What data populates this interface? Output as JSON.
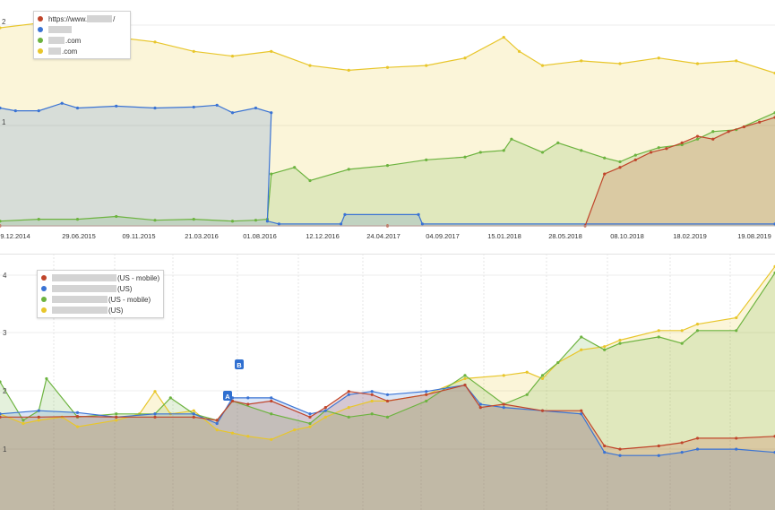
{
  "chart_data": [
    {
      "type": "area",
      "title": "",
      "x_tick_labels": [
        "9.12.2014",
        "29.06.2015",
        "09.11.2015",
        "21.03.2016",
        "01.08.2016",
        "12.12.2016",
        "24.04.2017",
        "04.09.2017",
        "15.01.2018",
        "28.05.2018",
        "08.10.2018",
        "18.02.2019",
        "19.08.2019"
      ],
      "y_tick_labels": [
        "2",
        "1"
      ],
      "ylim": [
        0,
        2.3
      ],
      "legend_position": "top-left",
      "series": [
        {
          "name": "https://www.",
          "name_suffix": "/",
          "color": "#c0452b",
          "x": [
            0,
            0.5,
            0.755,
            0.78,
            0.8,
            0.82,
            0.84,
            0.86,
            0.88,
            0.9,
            0.92,
            0.94,
            0.96,
            0.98,
            1.0
          ],
          "values": [
            0.0,
            0.0,
            0.0,
            0.55,
            0.62,
            0.7,
            0.78,
            0.82,
            0.88,
            0.95,
            0.92,
            1.0,
            1.05,
            1.1,
            1.15
          ]
        },
        {
          "name": "",
          "color": "#3a73d4",
          "x": [
            0,
            0.02,
            0.05,
            0.08,
            0.1,
            0.15,
            0.2,
            0.25,
            0.28,
            0.3,
            0.33,
            0.35,
            0.345,
            0.36,
            0.44,
            0.445,
            0.54,
            0.545,
            1.0
          ],
          "values": [
            1.25,
            1.22,
            1.22,
            1.3,
            1.25,
            1.27,
            1.25,
            1.26,
            1.28,
            1.2,
            1.25,
            1.2,
            0.05,
            0.02,
            0.02,
            0.12,
            0.12,
            0.02,
            0.02
          ]
        },
        {
          "name": ".com",
          "color": "#6cb33f",
          "x": [
            0,
            0.05,
            0.1,
            0.15,
            0.2,
            0.25,
            0.3,
            0.33,
            0.345,
            0.35,
            0.38,
            0.4,
            0.45,
            0.5,
            0.55,
            0.6,
            0.62,
            0.65,
            0.66,
            0.7,
            0.72,
            0.75,
            0.78,
            0.8,
            0.82,
            0.85,
            0.88,
            0.9,
            0.92,
            0.95,
            1.0
          ],
          "values": [
            0.05,
            0.07,
            0.07,
            0.1,
            0.06,
            0.07,
            0.05,
            0.06,
            0.07,
            0.55,
            0.62,
            0.48,
            0.6,
            0.64,
            0.7,
            0.73,
            0.78,
            0.8,
            0.92,
            0.78,
            0.88,
            0.8,
            0.72,
            0.68,
            0.75,
            0.83,
            0.86,
            0.92,
            1.0,
            1.02,
            1.2
          ]
        },
        {
          "name": ".com",
          "color": "#e8c62b",
          "x": [
            0,
            0.05,
            0.1,
            0.15,
            0.2,
            0.25,
            0.3,
            0.35,
            0.4,
            0.45,
            0.5,
            0.55,
            0.6,
            0.65,
            0.67,
            0.7,
            0.75,
            0.8,
            0.85,
            0.9,
            0.95,
            1.0
          ],
          "values": [
            2.1,
            2.15,
            2.05,
            2.0,
            1.95,
            1.85,
            1.8,
            1.85,
            1.7,
            1.65,
            1.68,
            1.7,
            1.78,
            2.0,
            1.85,
            1.7,
            1.75,
            1.72,
            1.78,
            1.72,
            1.75,
            1.62
          ]
        }
      ]
    },
    {
      "type": "area",
      "title": "",
      "y_tick_labels": [
        "4",
        "3",
        "2",
        "1"
      ],
      "ylim": [
        0.5,
        4.5
      ],
      "legend_position": "top-left",
      "annotations": [
        "A",
        "B"
      ],
      "series": [
        {
          "name": "(US - mobile)",
          "color": "#c0452b",
          "x": [
            0,
            0.05,
            0.1,
            0.15,
            0.2,
            0.25,
            0.28,
            0.3,
            0.32,
            0.35,
            0.4,
            0.42,
            0.45,
            0.48,
            0.5,
            0.55,
            0.6,
            0.62,
            0.65,
            0.7,
            0.75,
            0.78,
            0.8,
            0.85,
            0.88,
            0.9,
            0.95,
            1.0
          ],
          "values": [
            1.95,
            1.95,
            1.96,
            1.95,
            1.95,
            1.95,
            1.9,
            2.2,
            2.15,
            2.2,
            1.95,
            2.1,
            2.35,
            2.3,
            2.2,
            2.3,
            2.45,
            2.1,
            2.15,
            2.05,
            2.05,
            1.5,
            1.45,
            1.5,
            1.55,
            1.62,
            1.62,
            1.65
          ]
        },
        {
          "name": "(US)",
          "color": "#3a73d4",
          "x": [
            0,
            0.05,
            0.1,
            0.15,
            0.2,
            0.25,
            0.28,
            0.3,
            0.32,
            0.35,
            0.4,
            0.42,
            0.45,
            0.48,
            0.5,
            0.55,
            0.6,
            0.62,
            0.65,
            0.7,
            0.75,
            0.78,
            0.8,
            0.85,
            0.88,
            0.9,
            0.95,
            1.0
          ],
          "values": [
            2.0,
            2.05,
            2.02,
            1.95,
            2.0,
            2.0,
            1.85,
            2.25,
            2.25,
            2.25,
            2.0,
            2.05,
            2.3,
            2.35,
            2.3,
            2.35,
            2.45,
            2.15,
            2.1,
            2.05,
            2.0,
            1.4,
            1.35,
            1.35,
            1.4,
            1.45,
            1.45,
            1.4
          ]
        },
        {
          "name": "(US - mobile)",
          "color": "#6cb33f",
          "x": [
            0,
            0.03,
            0.05,
            0.06,
            0.1,
            0.15,
            0.2,
            0.22,
            0.25,
            0.28,
            0.3,
            0.35,
            0.4,
            0.42,
            0.45,
            0.48,
            0.5,
            0.55,
            0.6,
            0.65,
            0.68,
            0.7,
            0.72,
            0.75,
            0.78,
            0.8,
            0.85,
            0.88,
            0.9,
            0.95,
            1.0
          ],
          "values": [
            2.5,
            1.9,
            2.05,
            2.55,
            1.95,
            2.0,
            2.0,
            2.25,
            2.0,
            1.9,
            2.2,
            2.0,
            1.85,
            2.05,
            1.95,
            2.0,
            1.95,
            2.2,
            2.6,
            2.15,
            2.3,
            2.6,
            2.8,
            3.2,
            3.0,
            3.1,
            3.2,
            3.1,
            3.3,
            3.3,
            4.2
          ]
        },
        {
          "name": "(US)",
          "color": "#e8c62b",
          "x": [
            0,
            0.03,
            0.05,
            0.08,
            0.1,
            0.15,
            0.18,
            0.2,
            0.22,
            0.25,
            0.28,
            0.3,
            0.32,
            0.35,
            0.38,
            0.4,
            0.42,
            0.45,
            0.48,
            0.5,
            0.55,
            0.6,
            0.65,
            0.68,
            0.7,
            0.72,
            0.75,
            0.78,
            0.8,
            0.85,
            0.88,
            0.9,
            0.95,
            1.0
          ],
          "values": [
            2.0,
            1.85,
            1.9,
            1.95,
            1.8,
            1.9,
            2.0,
            2.35,
            2.0,
            2.05,
            1.75,
            1.7,
            1.65,
            1.6,
            1.75,
            1.8,
            1.95,
            2.1,
            2.2,
            2.2,
            2.3,
            2.55,
            2.6,
            2.65,
            2.55,
            2.8,
            3.0,
            3.05,
            3.15,
            3.3,
            3.3,
            3.4,
            3.5,
            4.3
          ]
        }
      ]
    }
  ],
  "legend_top": {
    "items": [
      {
        "prefix": "https://www.",
        "suffix": "/"
      },
      {
        "prefix": "",
        "suffix": ""
      },
      {
        "prefix": "",
        "suffix": ".com"
      },
      {
        "prefix": "",
        "suffix": ".com"
      }
    ]
  },
  "legend_bottom": {
    "items": [
      {
        "suffix": "(US - mobile)"
      },
      {
        "suffix": "(US)"
      },
      {
        "suffix": "(US - mobile)"
      },
      {
        "suffix": "(US)"
      }
    ]
  },
  "markers": {
    "a": "A",
    "b": "B"
  }
}
